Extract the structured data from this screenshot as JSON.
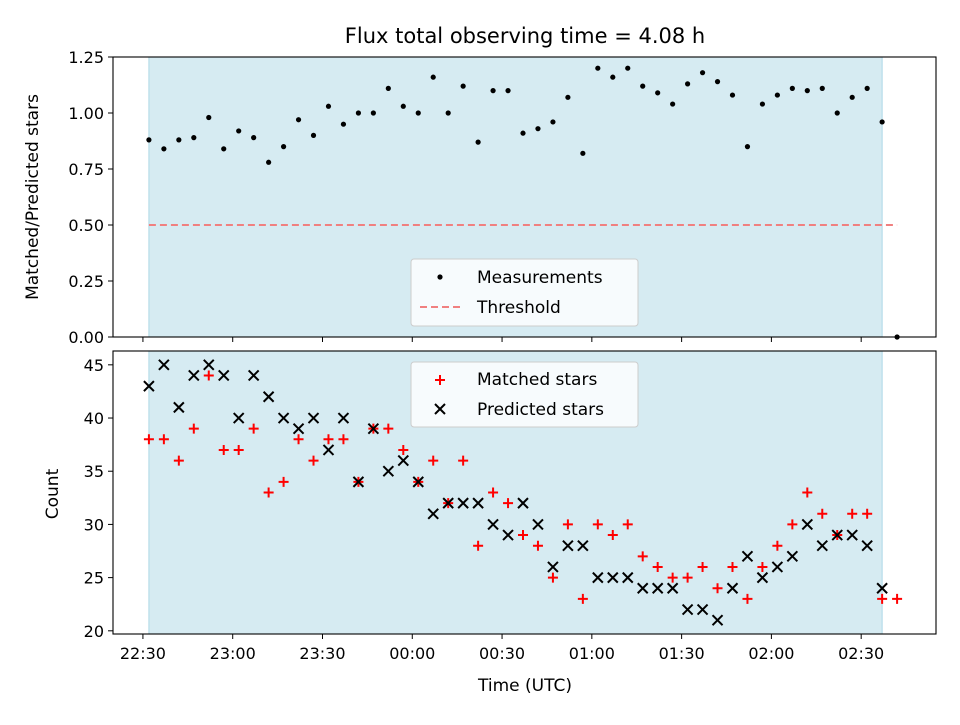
{
  "colors": {
    "shade": "#add8e6",
    "threshold": "#f08080",
    "matched": "#ff0000",
    "predicted": "#000000",
    "measurement": "#000000"
  },
  "chart_data": [
    {
      "type": "scatter",
      "title": "Flux total observing time = 4.08 h",
      "xlabel": "",
      "ylabel": "Matched/Predicted stars",
      "ylim": [
        0,
        1.25
      ],
      "yticks": [
        0,
        0.25,
        0.5,
        0.75,
        1.0,
        1.25
      ],
      "ytick_labels": [
        "0.00",
        "0.25",
        "0.50",
        "0.75",
        "1.00",
        "1.25"
      ],
      "x_unit": "minutes after 22:30 UTC",
      "xlim": [
        -10,
        265
      ],
      "shaded_region": [
        2,
        247
      ],
      "threshold": {
        "label": "Threshold",
        "value": 0.5,
        "x_range": [
          2,
          252
        ]
      },
      "legend": [
        "Measurements",
        "Threshold"
      ],
      "legend_position": "lower-center",
      "series": [
        {
          "name": "Measurements",
          "x": [
            2,
            7,
            12,
            17,
            22,
            27,
            32,
            37,
            42,
            47,
            52,
            57,
            62,
            67,
            72,
            77,
            82,
            87,
            92,
            97,
            102,
            107,
            112,
            117,
            122,
            127,
            132,
            137,
            142,
            147,
            152,
            157,
            162,
            167,
            172,
            177,
            182,
            187,
            192,
            197,
            202,
            207,
            212,
            217,
            222,
            227,
            232,
            237,
            242,
            247,
            252
          ],
          "y": [
            0.88,
            0.84,
            0.88,
            0.89,
            0.98,
            0.84,
            0.92,
            0.89,
            0.78,
            0.85,
            0.97,
            0.9,
            1.03,
            0.95,
            1.0,
            1.0,
            1.11,
            1.03,
            1.0,
            1.16,
            1.0,
            1.12,
            0.87,
            1.1,
            1.1,
            0.91,
            0.93,
            0.96,
            1.07,
            0.82,
            1.2,
            1.16,
            1.2,
            1.12,
            1.09,
            1.04,
            1.13,
            1.18,
            1.14,
            1.08,
            0.85,
            1.04,
            1.08,
            1.11,
            1.1,
            1.11,
            1.0,
            1.07,
            1.11,
            0.96,
            0.0
          ]
        }
      ]
    },
    {
      "type": "scatter",
      "title": "",
      "xlabel": "Time (UTC)",
      "ylabel": "Count",
      "ylim": [
        19.7,
        46.3
      ],
      "yticks": [
        20,
        25,
        30,
        35,
        40,
        45
      ],
      "ytick_labels": [
        "20",
        "25",
        "30",
        "35",
        "40",
        "45"
      ],
      "x_unit": "minutes after 22:30 UTC",
      "xlim": [
        -10,
        265
      ],
      "xticks": [
        0,
        30,
        60,
        90,
        120,
        150,
        180,
        210,
        240
      ],
      "xtick_labels": [
        "22:30",
        "23:00",
        "23:30",
        "00:00",
        "00:30",
        "01:00",
        "01:30",
        "02:00",
        "02:30"
      ],
      "shaded_region": [
        2,
        247
      ],
      "legend": [
        "Matched stars",
        "Predicted stars"
      ],
      "legend_position": "upper-center",
      "series": [
        {
          "name": "Matched stars",
          "marker": "+",
          "x": [
            2,
            7,
            12,
            17,
            22,
            27,
            32,
            37,
            42,
            47,
            52,
            57,
            62,
            67,
            72,
            77,
            82,
            87,
            92,
            97,
            102,
            107,
            112,
            117,
            122,
            127,
            132,
            137,
            142,
            147,
            152,
            157,
            162,
            167,
            172,
            177,
            182,
            187,
            192,
            197,
            202,
            207,
            212,
            217,
            222,
            227,
            232,
            237,
            242,
            247,
            252
          ],
          "y": [
            38,
            38,
            36,
            39,
            44,
            37,
            37,
            39,
            33,
            34,
            38,
            36,
            38,
            38,
            34,
            39,
            39,
            37,
            34,
            36,
            32,
            36,
            28,
            33,
            32,
            29,
            28,
            25,
            30,
            23,
            30,
            29,
            30,
            27,
            26,
            25,
            25,
            26,
            24,
            26,
            23,
            26,
            28,
            30,
            33,
            31,
            29,
            31,
            31,
            23,
            23
          ]
        },
        {
          "name": "Predicted stars",
          "marker": "x",
          "x": [
            2,
            7,
            12,
            17,
            22,
            27,
            32,
            37,
            42,
            47,
            52,
            57,
            62,
            67,
            72,
            77,
            82,
            87,
            92,
            97,
            102,
            107,
            112,
            117,
            122,
            127,
            132,
            137,
            142,
            147,
            152,
            157,
            162,
            167,
            172,
            177,
            182,
            187,
            192,
            197,
            202,
            207,
            212,
            217,
            222,
            227,
            232,
            237,
            242,
            247
          ],
          "y": [
            43,
            45,
            41,
            44,
            45,
            44,
            40,
            44,
            42,
            40,
            39,
            40,
            37,
            40,
            34,
            39,
            35,
            36,
            34,
            31,
            32,
            32,
            32,
            30,
            29,
            32,
            30,
            26,
            28,
            28,
            25,
            25,
            25,
            24,
            24,
            24,
            22,
            22,
            21,
            24,
            27,
            25,
            26,
            27,
            30,
            28,
            29,
            29,
            28,
            24
          ]
        }
      ]
    }
  ]
}
